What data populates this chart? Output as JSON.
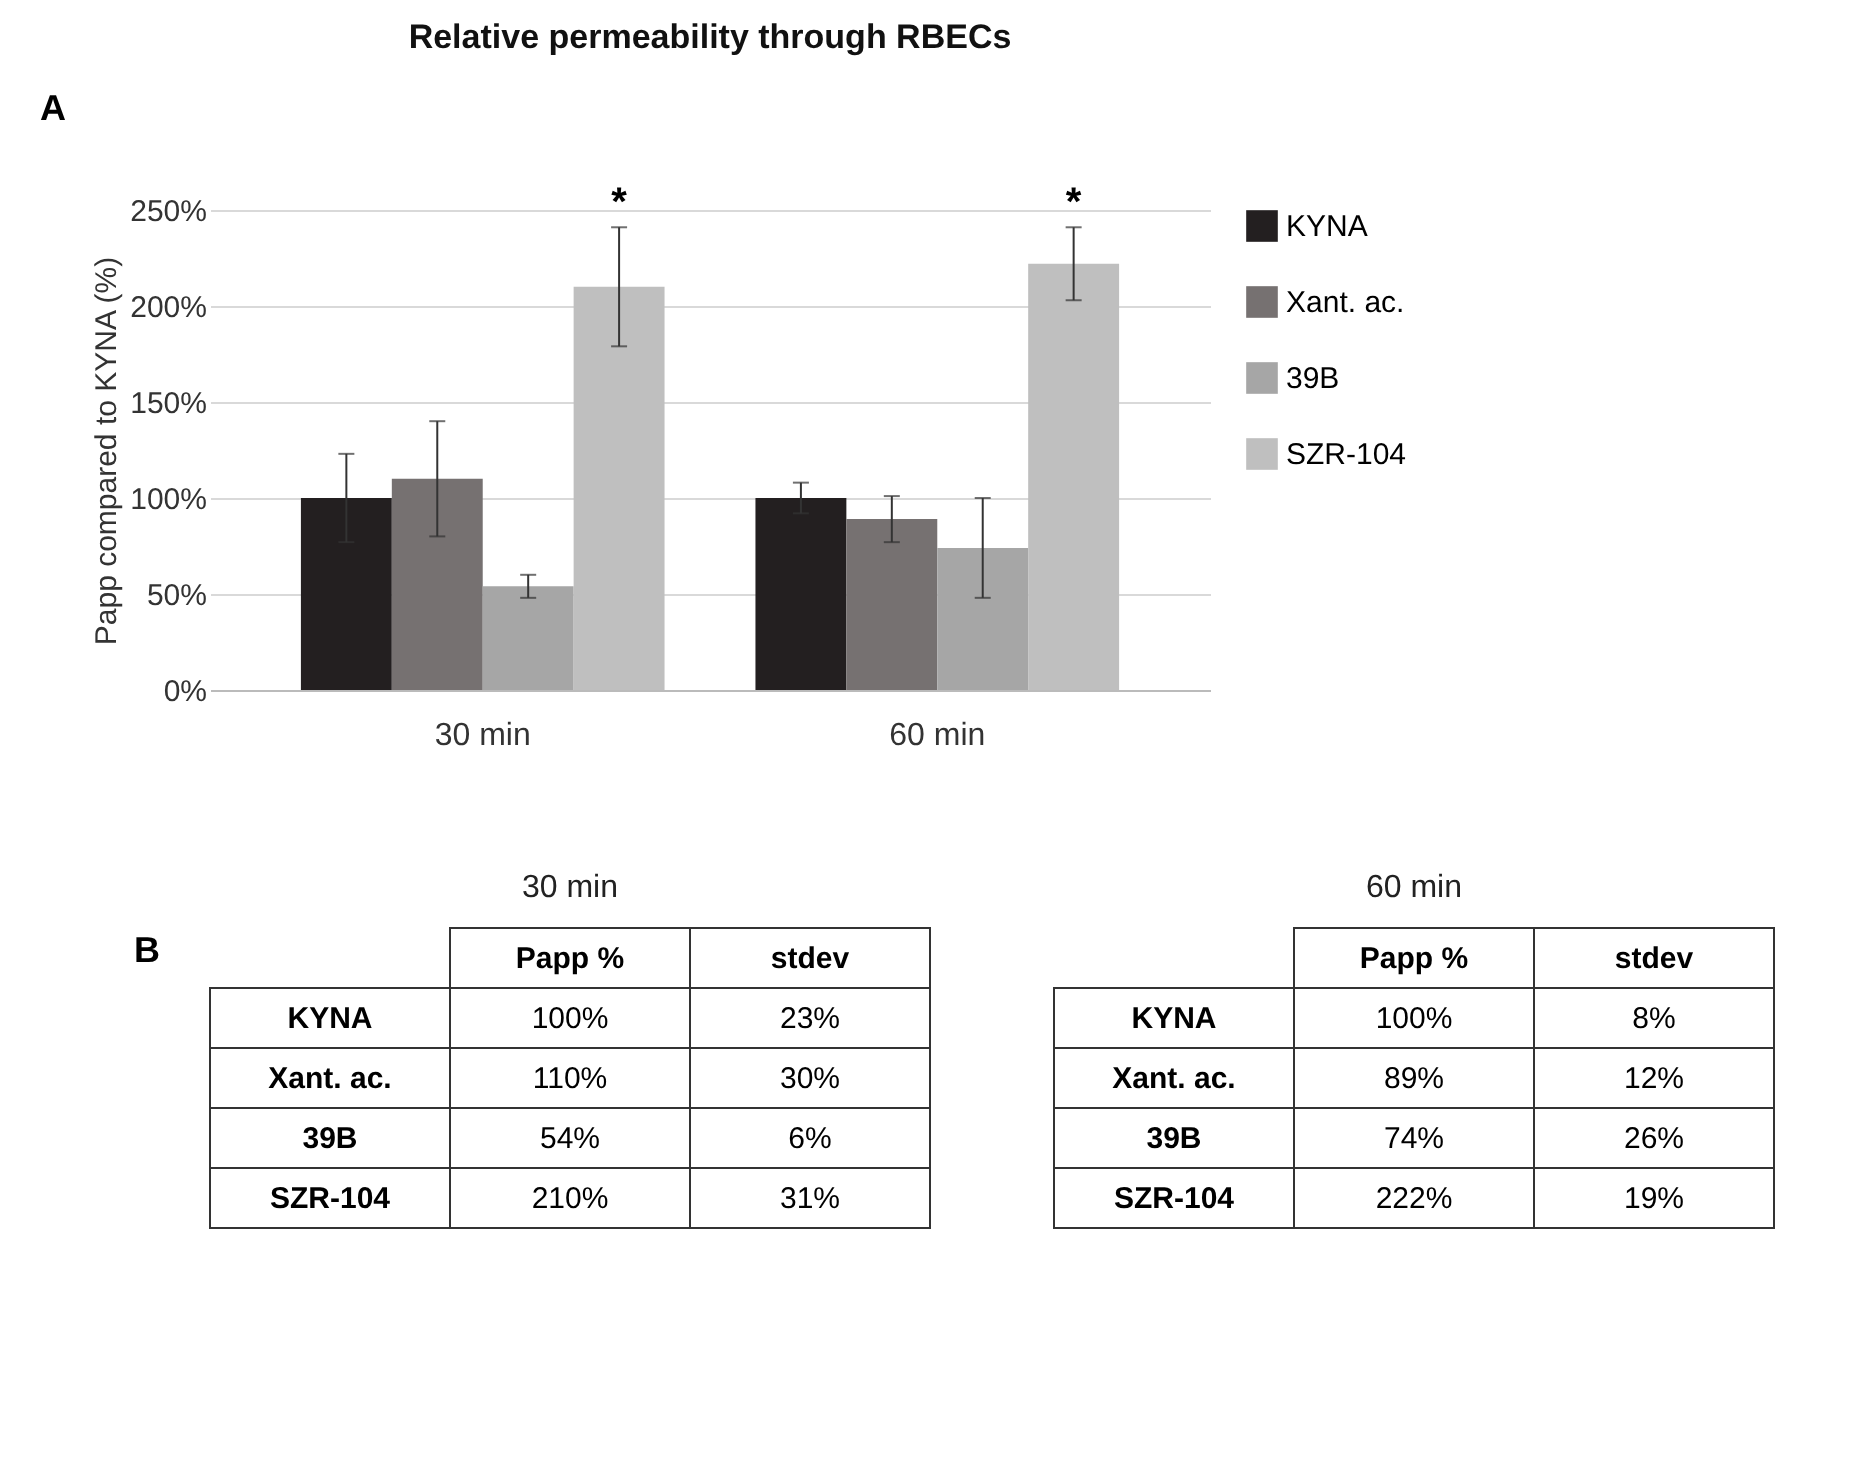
{
  "chart_data": {
    "type": "bar",
    "title": "Relative permeability through RBECs",
    "ylabel": "Papp compared to KYNA (%)",
    "categories": [
      "30 min",
      "60 min"
    ],
    "series": [
      {
        "name": "KYNA",
        "color": "#231f20",
        "values": [
          100,
          100
        ],
        "errors": [
          23,
          8
        ]
      },
      {
        "name": "Xant. ac.",
        "color": "#767171",
        "values": [
          110,
          89
        ],
        "errors": [
          30,
          12
        ]
      },
      {
        "name": "39B",
        "color": "#a6a6a6",
        "values": [
          54,
          74
        ],
        "errors": [
          6,
          26
        ]
      },
      {
        "name": "SZR-104",
        "color": "#bfbfbf",
        "values": [
          210,
          222
        ],
        "errors": [
          31,
          19
        ]
      }
    ],
    "ylim": [
      0,
      250
    ],
    "yticks": [
      {
        "value": 0,
        "label": "0%"
      },
      {
        "value": 50,
        "label": "50%"
      },
      {
        "value": 100,
        "label": "100%"
      },
      {
        "value": 150,
        "label": "150%"
      },
      {
        "value": 200,
        "label": "200%"
      },
      {
        "value": 250,
        "label": "250%"
      }
    ],
    "grid": "y",
    "legend": "right",
    "annotations": [
      "A",
      "*",
      "*",
      "B",
      "Papp %",
      "stdev",
      "100%",
      "110%",
      "54%",
      "210%",
      "23%",
      "30%",
      "6%",
      "31%",
      "100%",
      "89%",
      "74%",
      "222%",
      "8%",
      "12%",
      "26%",
      "19%"
    ]
  }
}
